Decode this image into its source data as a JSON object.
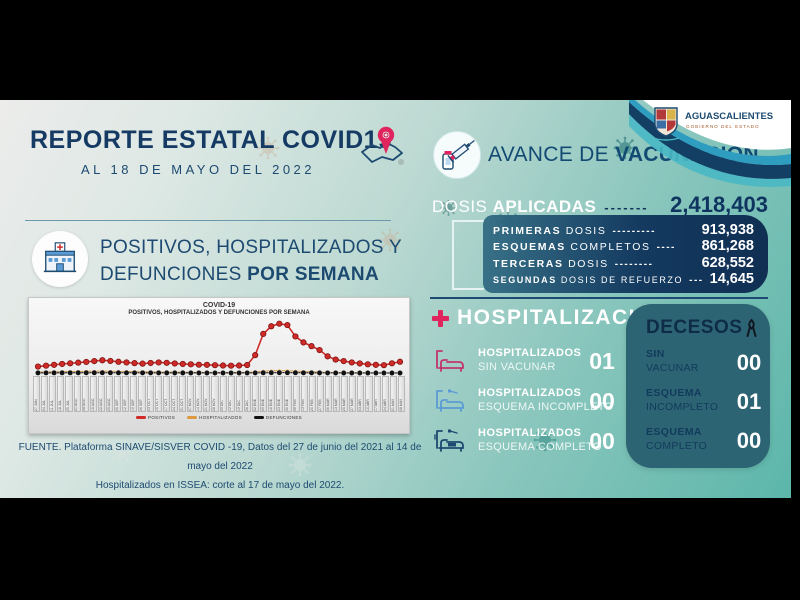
{
  "report": {
    "title": "REPORTE ESTATAL COVID19",
    "subtitle": "AL 18 DE MAYO DEL 2022",
    "section_line1": "POSITIVOS, HOSPITALIZADOS Y",
    "section_line2_regular": "DEFUNCIONES ",
    "section_line2_bold": "POR SEMANA",
    "source_line1": "FUENTE. Plataforma SINAVE/SISVER COVID -19, Datos del 27 de junio del 2021 al 14 de mayo del 2022",
    "source_line2": "Hospitalizados en ISSEA: corte al 17 de mayo del 2022."
  },
  "brand": {
    "name": "AGUASCALIENTES",
    "tagline": "GOBIERNO DEL ESTADO"
  },
  "chart_data": {
    "type": "line",
    "title": "COVID-19",
    "subtitle": "POSITIVOS, HOSPITALIZADOS Y DEFUNCIONES POR SEMANA",
    "estimated_values": true,
    "grid": false,
    "legend_position": "bottom",
    "ylim": [
      0,
      3000
    ],
    "categories": [
      "27 JUN",
      "04 JUL",
      "11 JUL",
      "18 JUL",
      "25 JUL",
      "01 AGO",
      "08 AGO",
      "15 AGO",
      "22 AGO",
      "29 AGO",
      "05 SEP",
      "12 SEP",
      "19 SEP",
      "26 SEP",
      "03 OCT",
      "10 OCT",
      "17 OCT",
      "24 OCT",
      "31 OCT",
      "07 NOV",
      "14 NOV",
      "21 NOV",
      "28 NOV",
      "05 DIC",
      "12 DIC",
      "19 DIC",
      "26 DIC",
      "02 ENE",
      "09 ENE",
      "16 ENE",
      "23 ENE",
      "30 ENE",
      "06 FEB",
      "13 FEB",
      "20 FEB",
      "27 FEB",
      "06 MAR",
      "13 MAR",
      "20 MAR",
      "27 MAR",
      "03 ABR",
      "10 ABR",
      "17 ABR",
      "24 ABR",
      "01 MAY",
      "08 MAY"
    ],
    "series": [
      {
        "name": "POSITIVOS",
        "color": "#cf2a27",
        "values": [
          380,
          430,
          480,
          530,
          570,
          610,
          650,
          700,
          750,
          710,
          660,
          620,
          580,
          550,
          590,
          620,
          600,
          560,
          530,
          510,
          490,
          480,
          460,
          440,
          430,
          440,
          470,
          1050,
          2300,
          2750,
          2900,
          2820,
          2150,
          1800,
          1580,
          1350,
          980,
          790,
          700,
          620,
          560,
          510,
          480,
          460,
          570,
          660
        ]
      },
      {
        "name": "HOSPITALIZADOS",
        "color": "#dd9a3e",
        "values": [
          60,
          65,
          70,
          80,
          85,
          90,
          95,
          100,
          105,
          100,
          90,
          85,
          80,
          70,
          65,
          60,
          55,
          50,
          45,
          40,
          35,
          35,
          30,
          30,
          30,
          35,
          40,
          70,
          110,
          130,
          140,
          135,
          110,
          90,
          70,
          55,
          40,
          30,
          25,
          20,
          15,
          12,
          10,
          8,
          8,
          10
        ]
      },
      {
        "name": "DEFUNCIONES",
        "color": "#111111",
        "values": [
          8,
          9,
          10,
          12,
          13,
          14,
          15,
          16,
          17,
          16,
          14,
          13,
          12,
          10,
          9,
          9,
          8,
          7,
          7,
          6,
          6,
          5,
          5,
          5,
          4,
          4,
          5,
          8,
          14,
          18,
          20,
          19,
          16,
          13,
          10,
          8,
          6,
          4,
          3,
          3,
          2,
          2,
          1,
          1,
          1,
          1
        ]
      }
    ]
  },
  "vaccination": {
    "header_regular": "AVANCE DE ",
    "header_bold": "VACUNACIÓN",
    "doses_regular": "DOSIS ",
    "doses_bold": "APLICADAS",
    "doses_dashes": "-------",
    "doses_total": "2,418,403",
    "rows": [
      {
        "label_bold": "PRIMERAS",
        "label_rest": " DOSIS",
        "dashes": "---------",
        "value": "913,938"
      },
      {
        "label_bold": "ESQUEMAS",
        "label_rest": " COMPLETOS",
        "dashes": "----",
        "value": "861,268"
      },
      {
        "label_bold": "TERCERAS",
        "label_rest": " DOSIS",
        "dashes": "--------",
        "value": "628,552"
      },
      {
        "label_bold": "SEGUNDAS",
        "label_rest": " DOSIS DE REFUERZO",
        "dashes": "---",
        "value": "14,645"
      }
    ]
  },
  "hospitalization": {
    "header": "HOSPITALIZACIÓN",
    "rows": [
      {
        "line1": "HOSPITALIZADOS",
        "line2": "SIN VACUNAR",
        "value": "01",
        "icon_color": "#c2356d"
      },
      {
        "line1": "HOSPITALIZADOS",
        "line2": "ESQUEMA INCOMPLETO",
        "value": "00",
        "icon_color": "#5b9bd5"
      },
      {
        "line1": "HOSPITALIZADOS",
        "line2": "ESQUEMA COMPLETO",
        "value": "00",
        "icon_color": "#1d4a70"
      }
    ]
  },
  "deaths": {
    "header": "DECESOS",
    "rows": [
      {
        "line1": "SIN",
        "line2": "VACUNAR",
        "value": "00"
      },
      {
        "line1": "ESQUEMA",
        "line2": "INCOMPLETO",
        "value": "01"
      },
      {
        "line1": "ESQUEMA",
        "line2": "COMPLETO",
        "value": "00"
      }
    ]
  },
  "colors": {
    "navy": "#153a63",
    "teal_bg": "#5cb6aa",
    "accent_pink": "#e0245e",
    "box_navy": "#12355b",
    "deaths_panel": "#2d6473"
  }
}
